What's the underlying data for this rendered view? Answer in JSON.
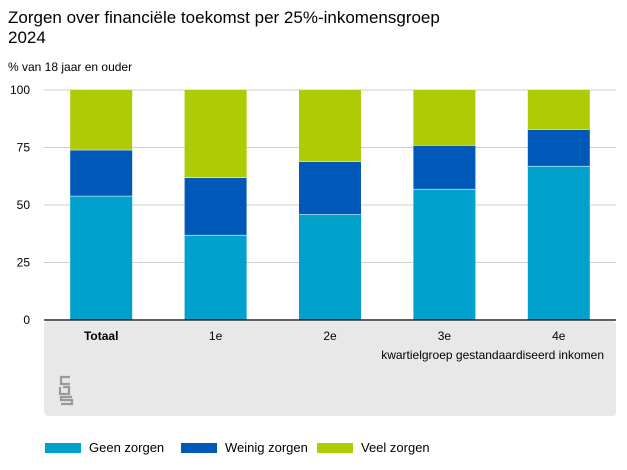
{
  "chart_data": {
    "type": "bar",
    "stacked": true,
    "title": "Zorgen over financiële toekomst per 25%-inkomensgroep",
    "subtitle": "2024",
    "ylabel": "% van 18 jaar en ouder",
    "xlabel": "kwartielgroep gestandaardiseerd inkomen",
    "categories": [
      "Totaal",
      "1e",
      "2e",
      "3e",
      "4e"
    ],
    "ylim": [
      0,
      100
    ],
    "yticks": [
      0,
      25,
      50,
      75,
      100
    ],
    "series": [
      {
        "name": "Geen zorgen",
        "color": "#00a1cd",
        "values": [
          54,
          37,
          46,
          57,
          67
        ]
      },
      {
        "name": "Weinig zorgen",
        "color": "#0058b8",
        "values": [
          20,
          25,
          23,
          19,
          16
        ]
      },
      {
        "name": "Veel zorgen",
        "color": "#afcb05",
        "values": [
          26,
          38,
          31,
          24,
          17
        ]
      }
    ]
  },
  "logo": {
    "icon": "cbs-logo"
  }
}
